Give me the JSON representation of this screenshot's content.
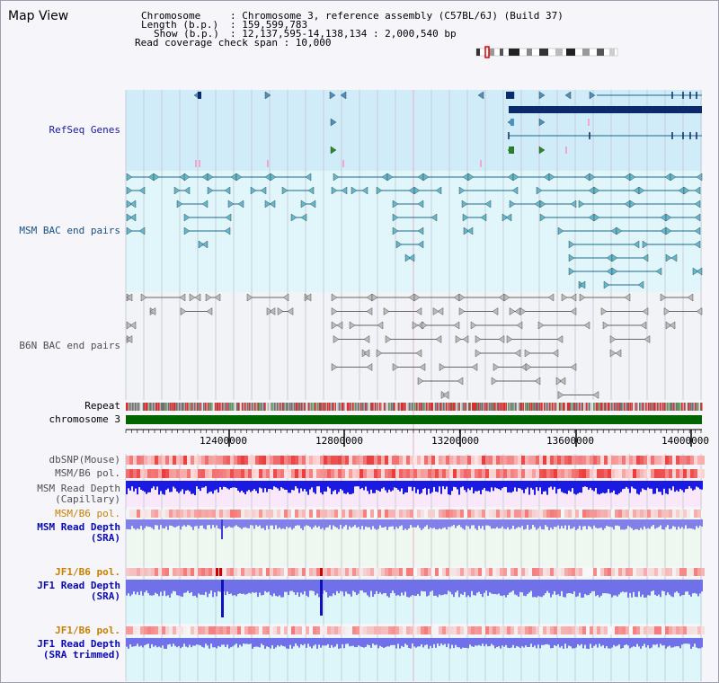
{
  "app": {
    "title": "Map View"
  },
  "header": {
    "chromosome_key": "Chromosome",
    "chromosome_val": ": Chromosome 3, reference assembly (C57BL/6J) (Build 37)",
    "length_key": "Length (b.p.)",
    "length_val": ": 159,599,783",
    "show_key": "Show (b.p.)",
    "show_val": ": 12,137,595-14,138,134 : 2,000,540 bp",
    "coverage": "Read coverage check span : 10,000"
  },
  "tracks": {
    "refseq": "RefSeq Genes",
    "msm_bac": "MSM BAC end pairs",
    "b6n_bac": "B6N BAC end pairs",
    "repeat": "Repeat",
    "chromosome": "chromosome 3",
    "dbsnp": "dbSNP(Mouse)",
    "msm_b6_pol_1": "MSM/B6 pol.",
    "msm_read_depth_cap_1": "MSM Read Depth",
    "msm_read_depth_cap_2": "(Capillary)",
    "msm_b6_pol_2": "MSM/B6 pol.",
    "msm_read_depth_sra_1": "MSM Read Depth",
    "msm_read_depth_sra_2": "(SRA)",
    "jf1_b6_pol_1": "JF1/B6 pol.",
    "jf1_read_depth_sra_1": "JF1 Read Depth",
    "jf1_read_depth_sra_2": "(SRA)",
    "jf1_b6_pol_2": "JF1/B6 pol.",
    "jf1_read_depth_trim_1": "JF1 Read Depth",
    "jf1_read_depth_trim_2": "(SRA trimmed)"
  },
  "axis": {
    "ticks": [
      "12400000",
      "12800000",
      "13200000",
      "13600000",
      "14000000"
    ]
  },
  "colors": {
    "refseq_label": "#1a1aa0",
    "msm_bac_label": "#1a4f80",
    "b6n_bac_label": "#505050",
    "pol_label": "#c88000",
    "depth_label": "#0a0ab4",
    "gene_dark": "#0a2a6a",
    "bac_teal": "#1a6a8a",
    "chrom_green": "#006400"
  }
}
